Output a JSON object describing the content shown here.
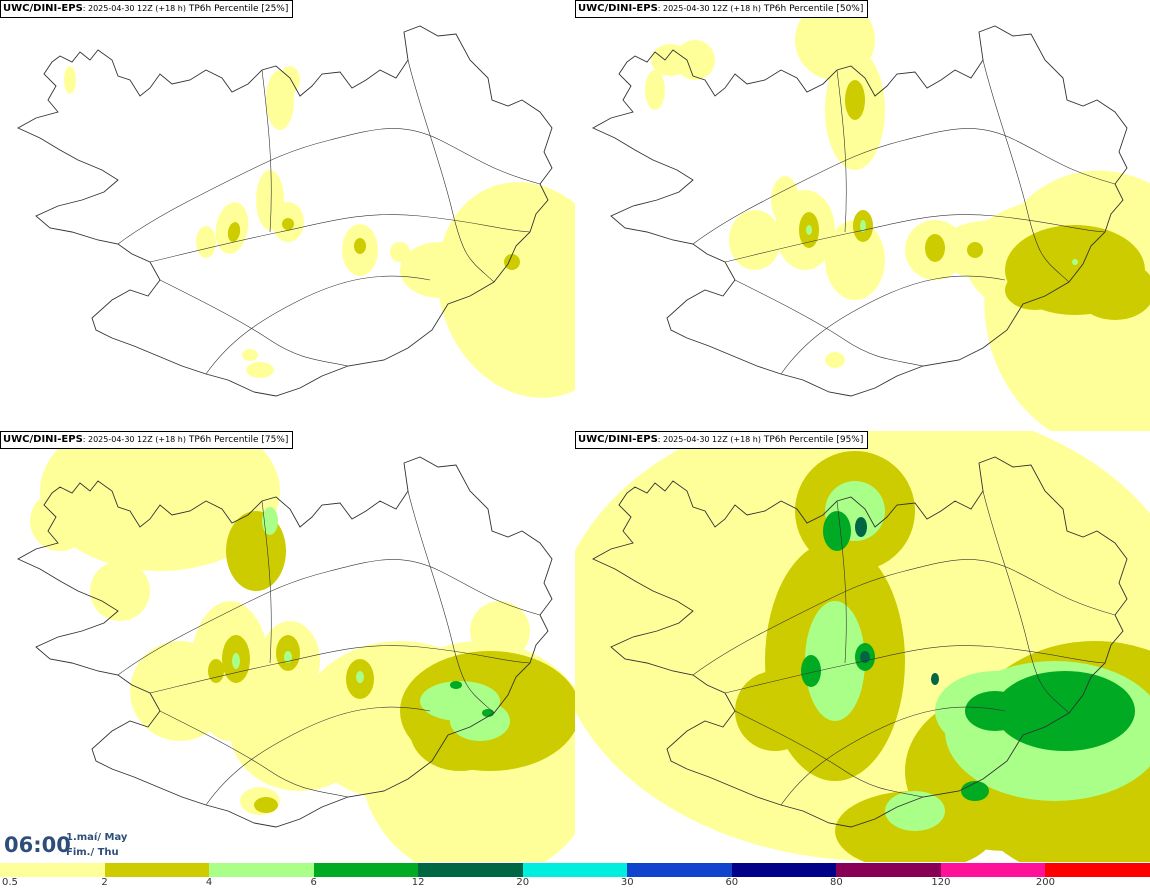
{
  "panels": [
    {
      "source": "UWC/DINI-EPS",
      "meta": ": 2025-04-30 12Z (+18 h)",
      "variable": "TP6h Percentile [25%]",
      "percentile": 25
    },
    {
      "source": "UWC/DINI-EPS",
      "meta": ": 2025-04-30 12Z (+18 h)",
      "variable": "TP6h Percentile [50%]",
      "percentile": 50
    },
    {
      "source": "UWC/DINI-EPS",
      "meta": ": 2025-04-30 12Z (+18 h)",
      "variable": "TP6h Percentile [75%]",
      "percentile": 75
    },
    {
      "source": "UWC/DINI-EPS",
      "meta": ": 2025-04-30 12Z (+18 h)",
      "variable": "TP6h Percentile [95%]",
      "percentile": 95
    }
  ],
  "valid_time": {
    "time": "06:00",
    "date_line": "1.maí/ May",
    "day_line": "Fim./ Thu"
  },
  "colors": {
    "c05": "#ffff99",
    "c2": "#cccc00",
    "c4": "#aaff88",
    "c6": "#00aa22",
    "c12": "#006644",
    "c20": "#00eedd",
    "c30": "#1144cc",
    "c60": "#000088",
    "c80": "#880055",
    "c120": "#ff1199",
    "c200": "#ff0000"
  },
  "legend": {
    "ticks": [
      "0.5",
      "2",
      "4",
      "6",
      "12",
      "20",
      "30",
      "60",
      "80",
      "120",
      "200"
    ],
    "colors": [
      "#ffff99",
      "#cccc00",
      "#aaff88",
      "#00aa22",
      "#006644",
      "#00eedd",
      "#1144cc",
      "#000088",
      "#880055",
      "#ff1199",
      "#ff0000"
    ]
  }
}
